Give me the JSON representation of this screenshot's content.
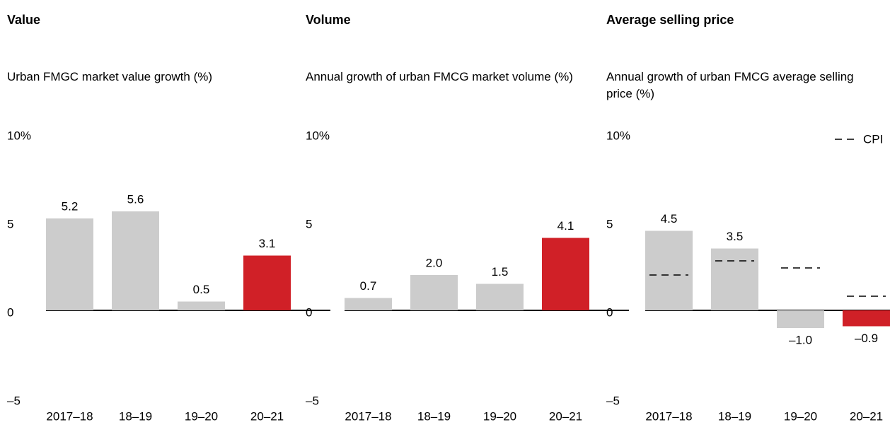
{
  "chart_data": [
    {
      "type": "bar",
      "title": "Value",
      "subtitle": "Urban FMGC market value growth (%)",
      "categories": [
        "2017–18",
        "18–19",
        "19–20",
        "20–21"
      ],
      "values": [
        5.2,
        5.6,
        0.5,
        3.1
      ],
      "value_labels": [
        "5.2",
        "5.6",
        "0.5",
        "3.1"
      ],
      "colors": [
        "#cccccc",
        "#cccccc",
        "#cccccc",
        "#d02027"
      ],
      "ylim": [
        -5,
        10
      ],
      "yticks": [
        {
          "value": 10,
          "label": "10%"
        },
        5,
        0,
        {
          "value": -5,
          "label": "–5"
        }
      ],
      "grid": false
    },
    {
      "type": "bar",
      "title": "Volume",
      "subtitle": "Annual growth of urban FMCG market volume (%)",
      "categories": [
        "2017–18",
        "18–19",
        "19–20",
        "20–21"
      ],
      "values": [
        0.7,
        2.0,
        1.5,
        4.1
      ],
      "value_labels": [
        "0.7",
        "2.0",
        "1.5",
        "4.1"
      ],
      "colors": [
        "#cccccc",
        "#cccccc",
        "#cccccc",
        "#d02027"
      ],
      "ylim": [
        -5,
        10
      ],
      "yticks": [
        {
          "value": 10,
          "label": "10%"
        },
        5,
        0,
        {
          "value": -5,
          "label": "–5"
        }
      ],
      "grid": false
    },
    {
      "type": "bar",
      "title": "Average selling price",
      "subtitle": "Annual growth of urban FMCG average selling price (%)",
      "categories": [
        "2017–18",
        "18–19",
        "19–20",
        "20–21"
      ],
      "values": [
        4.5,
        3.5,
        -1.0,
        -0.9
      ],
      "value_labels": [
        "4.5",
        "3.5",
        "–1.0",
        "–0.9"
      ],
      "colors": [
        "#cccccc",
        "#cccccc",
        "#cccccc",
        "#d02027"
      ],
      "series": [
        {
          "name": "CPI",
          "color": "#000000",
          "values": [
            2.0,
            2.8,
            2.4,
            0.8
          ]
        }
      ],
      "legend": "upper right",
      "ylim": [
        -5,
        10
      ],
      "yticks": [
        {
          "value": 10,
          "label": "10%"
        },
        5,
        0,
        {
          "value": -5,
          "label": "–5"
        }
      ],
      "grid": false
    }
  ]
}
